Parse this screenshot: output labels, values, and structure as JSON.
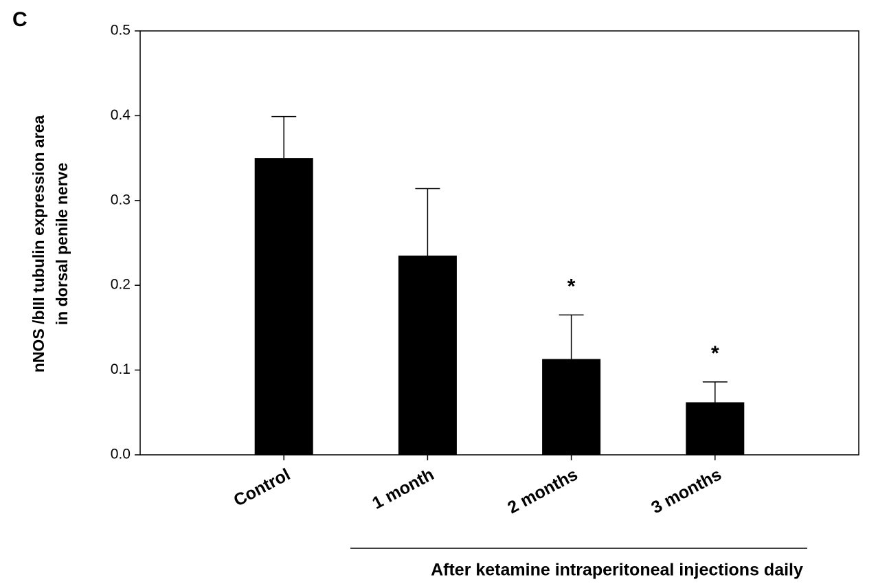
{
  "chart_data": {
    "type": "bar",
    "panel_label": "C",
    "ylabel": [
      "nNOS /bIII tubulin expression area",
      "in dorsal penile nerve"
    ],
    "categories": [
      "Control",
      "1 month",
      "2 months",
      "3 months"
    ],
    "values": [
      0.35,
      0.235,
      0.113,
      0.062
    ],
    "errors": [
      0.049,
      0.079,
      0.052,
      0.024
    ],
    "annotations": [
      null,
      null,
      "*",
      "*"
    ],
    "group_label": "After ketamine intraperitoneal injections daily",
    "color": "#000000",
    "ylim": [
      0,
      0.5
    ],
    "yticks": [
      {
        "value": 0,
        "label": "0.0"
      },
      0.1,
      0.2,
      0.3,
      0.4,
      0.5
    ],
    "grid": false
  }
}
